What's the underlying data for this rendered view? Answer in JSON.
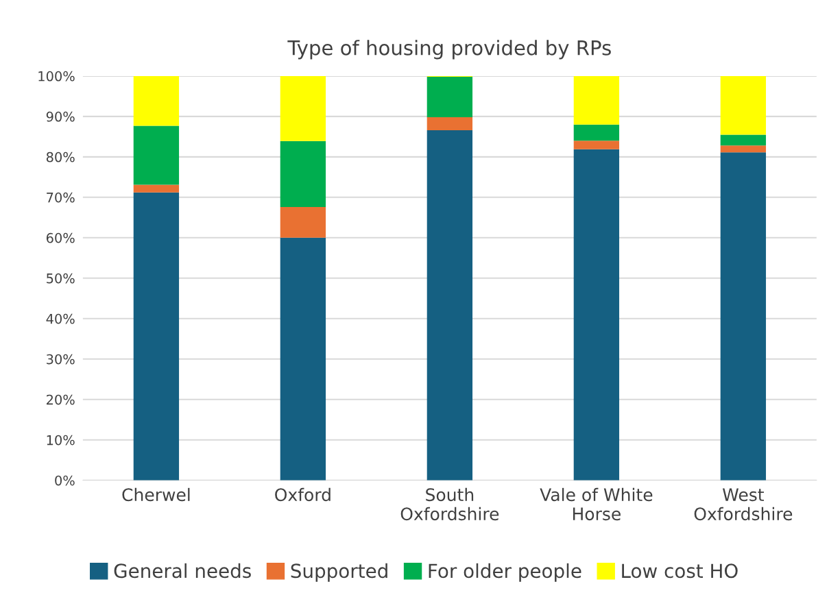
{
  "chart_data": {
    "type": "bar",
    "title": "Type of housing provided by RPs",
    "stacked": true,
    "categories": [
      "Cherwel",
      "Oxford",
      "South\nOxfordshire",
      "Vale of White\nHorse",
      "West\nOxfordshire"
    ],
    "series": [
      {
        "name": "General needs",
        "color": "#156082",
        "values": [
          71.2,
          60.0,
          86.6,
          81.9,
          81.1
        ]
      },
      {
        "name": "Supported",
        "color": "#e97132",
        "values": [
          1.9,
          7.6,
          3.2,
          2.1,
          1.7
        ]
      },
      {
        "name": "For older people",
        "color": "#00ae4f",
        "values": [
          14.6,
          16.3,
          10.0,
          4.0,
          2.7
        ]
      },
      {
        "name": "Low cost HO",
        "color": "#ffff00",
        "values": [
          12.3,
          16.1,
          0.2,
          12.0,
          14.5
        ]
      }
    ],
    "ylim": [
      0,
      100
    ],
    "yticks": [
      {
        "value": 0,
        "label": "0%"
      },
      {
        "value": 10,
        "label": "10%"
      },
      {
        "value": 20,
        "label": "20%"
      },
      {
        "value": 30,
        "label": "30%"
      },
      {
        "value": 40,
        "label": "40%"
      },
      {
        "value": 50,
        "label": "50%"
      },
      {
        "value": 60,
        "label": "60%"
      },
      {
        "value": 70,
        "label": "70%"
      },
      {
        "value": 80,
        "label": "80%"
      },
      {
        "value": 90,
        "label": "90%"
      },
      {
        "value": 100,
        "label": "100%"
      }
    ],
    "grid": "y",
    "legend": "bottom"
  }
}
